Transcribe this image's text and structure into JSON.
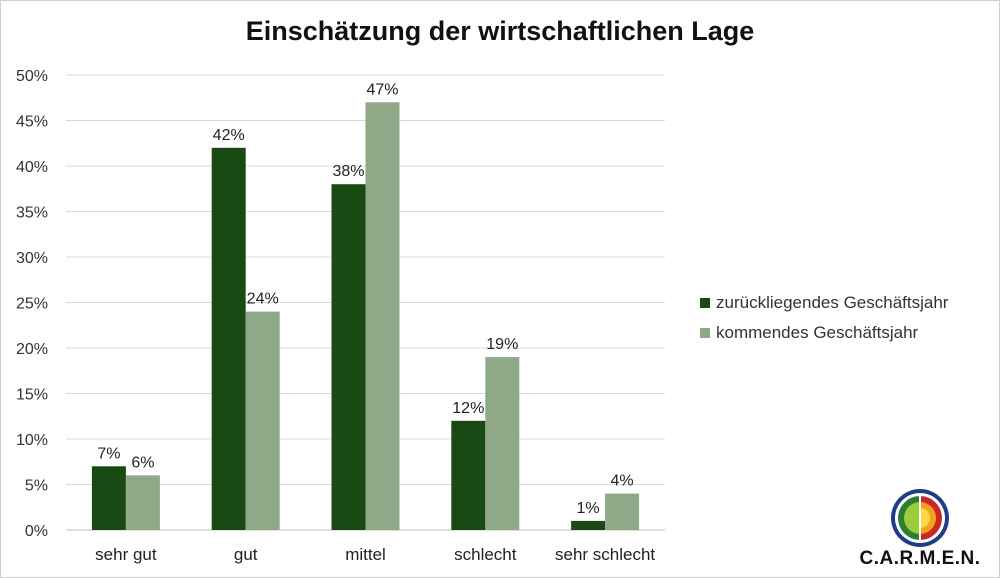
{
  "title": "Einschätzung der wirtschaftlichen Lage",
  "chart_data": {
    "type": "bar",
    "title": "Einschätzung der wirtschaftlichen Lage",
    "categories": [
      "sehr gut",
      "gut",
      "mittel",
      "schlecht",
      "sehr schlecht"
    ],
    "series": [
      {
        "name": "zurückliegendes Geschäftsjahr",
        "values": [
          7,
          42,
          38,
          12,
          1
        ],
        "color": "#1a4a14"
      },
      {
        "name": "kommendes Geschäftsjahr",
        "values": [
          6,
          24,
          47,
          19,
          4
        ],
        "color": "#8ea888"
      }
    ],
    "ylim": [
      0,
      50
    ],
    "yticks": [
      0,
      5,
      10,
      15,
      20,
      25,
      30,
      35,
      40,
      45,
      50
    ],
    "ytick_labels": [
      "0%",
      "5%",
      "10%",
      "15%",
      "20%",
      "25%",
      "30%",
      "35%",
      "40%",
      "45%",
      "50%"
    ],
    "data_labels": [
      [
        "7%",
        "42%",
        "38%",
        "12%",
        "1%"
      ],
      [
        "6%",
        "24%",
        "47%",
        "19%",
        "4%"
      ]
    ],
    "grid": true,
    "legend_position": "right"
  },
  "legend": {
    "items": [
      {
        "label": "zurückliegendes Geschäftsjahr",
        "color": "#1a4a14"
      },
      {
        "label": "kommendes Geschäftsjahr",
        "color": "#8ea888"
      }
    ]
  },
  "logo": {
    "text": "C.A.R.M.E.N.",
    "icon": "carmen-logo-icon"
  }
}
